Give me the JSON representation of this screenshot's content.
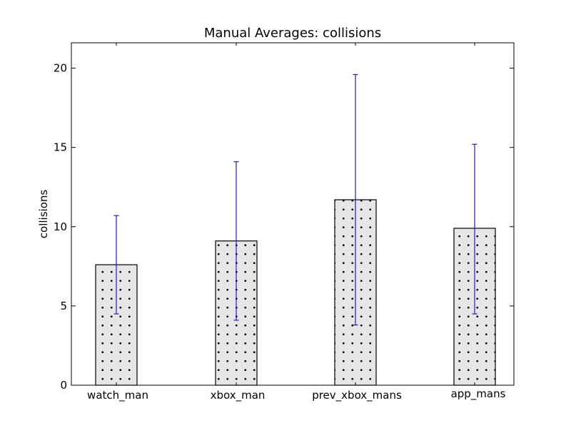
{
  "chart_data": {
    "type": "bar",
    "title": "Manual Averages: collisions",
    "xlabel": "",
    "ylabel": "collisions",
    "categories": [
      "watch_man",
      "xbox_man",
      "prev_xbox_mans",
      "app_mans"
    ],
    "values": [
      7.6,
      9.1,
      11.7,
      9.9
    ],
    "error_low": [
      4.5,
      4.1,
      3.8,
      4.5
    ],
    "error_high": [
      10.7,
      14.1,
      19.6,
      15.2
    ],
    "ylim": [
      0,
      21.6
    ],
    "yticks": [
      0,
      5,
      10,
      15,
      20
    ],
    "grid": false,
    "legend": "none",
    "bar_fill_color": "#e6e6e6",
    "bar_hatch": "dots",
    "error_bar_color": "#1f1fbf"
  }
}
